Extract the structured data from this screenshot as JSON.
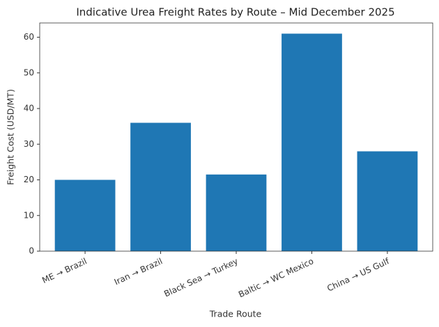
{
  "chart_data": {
    "type": "bar",
    "title": "Indicative Urea Freight Rates by Route – Mid December 2025",
    "xlabel": "Trade Route",
    "ylabel": "Freight Cost (USD/MT)",
    "categories": [
      "ME → Brazil",
      "Iran → Brazil",
      "Black Sea → Turkey",
      "Baltic → WC Mexico",
      "China → US Gulf"
    ],
    "values": [
      20,
      36,
      21.5,
      61,
      28
    ],
    "color": "#1f77b4",
    "ylim": [
      0,
      64
    ],
    "yticks": [
      0,
      10,
      20,
      30,
      40,
      50,
      60
    ],
    "grid": false
  }
}
